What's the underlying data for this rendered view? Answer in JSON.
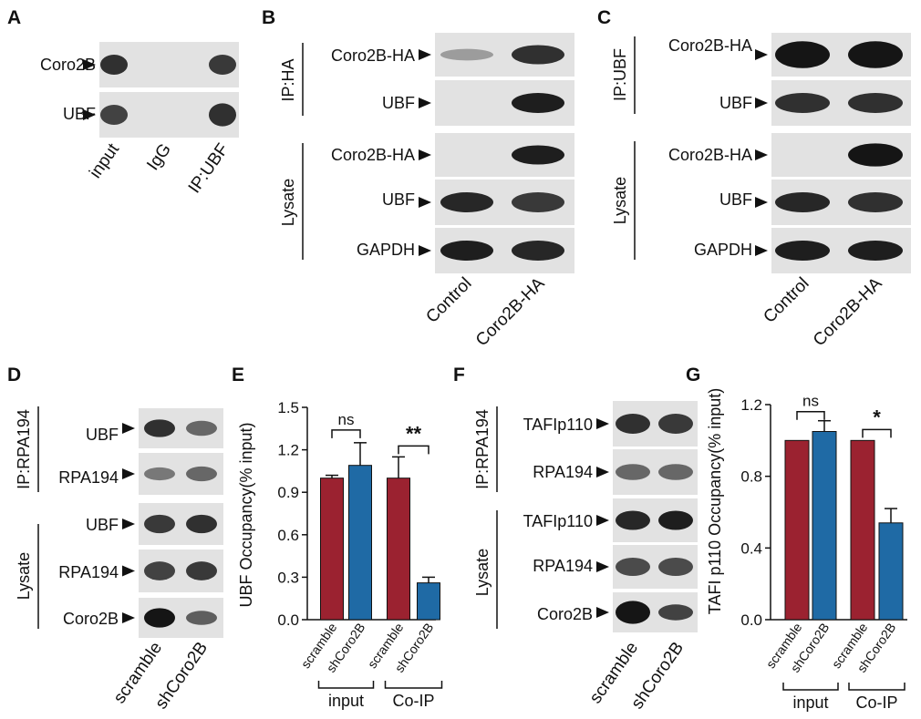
{
  "colors": {
    "scramble": "#9b2230",
    "shCoro2B": "#1f6aa5",
    "blot_bg": "#e2e2e2",
    "band": "#151515"
  },
  "panels": {
    "A": {
      "label": "A",
      "rows": [
        {
          "label": "Coro2B",
          "bands": [
            [
              0.85,
              1.0
            ],
            [
              0,
              0.2
            ],
            [
              0.8,
              1.0
            ]
          ]
        },
        {
          "label": "UBF",
          "bands": [
            [
              0.75,
              1.0
            ],
            [
              0,
              0.2
            ],
            [
              0.85,
              1.15
            ]
          ]
        }
      ],
      "lanes": [
        "input",
        "IgG",
        "IP:UBF"
      ]
    },
    "B": {
      "label": "B",
      "groups": [
        "IP:HA",
        "Lysate"
      ],
      "rows": [
        {
          "label": "Coro2B-HA",
          "bands": [
            [
              0.25,
              0.6
            ],
            [
              0.85,
              1.0
            ]
          ]
        },
        {
          "label": "UBF",
          "bands": [
            [
              0,
              0.3
            ],
            [
              0.95,
              1.0
            ]
          ]
        },
        {
          "label": "Coro2B-HA",
          "bands": [
            [
              0,
              0.3
            ],
            [
              0.95,
              1.0
            ]
          ]
        },
        {
          "label": "UBF",
          "bands": [
            [
              0.9,
              1.0
            ],
            [
              0.8,
              1.0
            ]
          ]
        },
        {
          "label": "GAPDH",
          "bands": [
            [
              0.95,
              1.0
            ],
            [
              0.9,
              1.0
            ]
          ]
        }
      ],
      "lanes": [
        "Control",
        "Coro2B-HA"
      ]
    },
    "C": {
      "label": "C",
      "groups": [
        "IP:UBF",
        "Lysate"
      ],
      "rows": [
        {
          "label": "Coro2B-HA",
          "bands": [
            [
              1.0,
              1.4
            ],
            [
              1.0,
              1.4
            ]
          ]
        },
        {
          "label": "UBF",
          "bands": [
            [
              0.85,
              1.0
            ],
            [
              0.85,
              1.0
            ]
          ]
        },
        {
          "label": "Coro2B-HA",
          "bands": [
            [
              0,
              0.3
            ],
            [
              1.0,
              1.2
            ]
          ]
        },
        {
          "label": "UBF",
          "bands": [
            [
              0.9,
              1.0
            ],
            [
              0.85,
              1.0
            ]
          ]
        },
        {
          "label": "GAPDH",
          "bands": [
            [
              0.95,
              1.0
            ],
            [
              0.95,
              1.0
            ]
          ]
        }
      ],
      "lanes": [
        "Control",
        "Coro2B-HA"
      ]
    },
    "D": {
      "label": "D",
      "groups": [
        "IP:RPA194",
        "Lysate"
      ],
      "rows": [
        {
          "label": "UBF",
          "bands": [
            [
              0.85,
              1.0
            ],
            [
              0.55,
              0.85
            ]
          ]
        },
        {
          "label": "RPA194",
          "bands": [
            [
              0.45,
              0.7
            ],
            [
              0.55,
              0.8
            ]
          ]
        },
        {
          "label": "UBF",
          "bands": [
            [
              0.8,
              1.0
            ],
            [
              0.85,
              1.0
            ]
          ]
        },
        {
          "label": "RPA194",
          "bands": [
            [
              0.75,
              1.0
            ],
            [
              0.8,
              1.0
            ]
          ]
        },
        {
          "label": "Coro2B",
          "bands": [
            [
              1.0,
              1.1
            ],
            [
              0.6,
              0.8
            ]
          ]
        }
      ],
      "lanes": [
        "scramble",
        "shCoro2B"
      ]
    },
    "E": {
      "label": "E",
      "y_axis_label": "UBF Occupancy(% input)",
      "groups": [
        "input",
        "Co-IP"
      ],
      "significance": [
        "ns",
        "**"
      ]
    },
    "F": {
      "label": "F",
      "groups": [
        "IP:RPA194",
        "Lysate"
      ],
      "rows": [
        {
          "label": "TAFIp110",
          "bands": [
            [
              0.85,
              1.0
            ],
            [
              0.8,
              1.0
            ]
          ]
        },
        {
          "label": "RPA194",
          "bands": [
            [
              0.55,
              0.8
            ],
            [
              0.55,
              0.8
            ]
          ]
        },
        {
          "label": "TAFIp110",
          "bands": [
            [
              0.9,
              1.0
            ],
            [
              0.95,
              1.0
            ]
          ]
        },
        {
          "label": "RPA194",
          "bands": [
            [
              0.7,
              0.95
            ],
            [
              0.7,
              0.95
            ]
          ]
        },
        {
          "label": "Coro2B",
          "bands": [
            [
              1.0,
              1.3
            ],
            [
              0.75,
              0.9
            ]
          ]
        }
      ],
      "lanes": [
        "scramble",
        "shCoro2B"
      ]
    },
    "G": {
      "label": "G",
      "y_axis_label": "TAFI p110 Occupancy(% input)",
      "groups": [
        "input",
        "Co-IP"
      ],
      "significance": [
        "ns",
        "*"
      ]
    }
  },
  "chart_data": [
    {
      "type": "bar",
      "panel": "E",
      "ylabel": "UBF Occupancy(% input)",
      "categories": [
        "scramble",
        "shCoro2B",
        "scramble",
        "shCoro2B"
      ],
      "groups": [
        "input",
        "Co-IP"
      ],
      "values": [
        1.0,
        1.09,
        1.0,
        0.26
      ],
      "errors": [
        0.02,
        0.16,
        0.15,
        0.04
      ],
      "ylim": [
        0,
        1.5
      ],
      "yticks": [
        "0.0",
        "0.3",
        "0.6",
        "0.9",
        "1.2",
        "1.5"
      ],
      "significance": [
        "ns",
        "**"
      ]
    },
    {
      "type": "bar",
      "panel": "G",
      "ylabel": "TAFI p110 Occupancy(% input)",
      "categories": [
        "scramble",
        "shCoro2B",
        "scramble",
        "shCoro2B"
      ],
      "groups": [
        "input",
        "Co-IP"
      ],
      "values": [
        1.0,
        1.05,
        1.0,
        0.54
      ],
      "errors": [
        0.0,
        0.06,
        0.0,
        0.08
      ],
      "ylim": [
        0,
        1.2
      ],
      "yticks": [
        "0.0",
        "0.4",
        "0.8",
        "1.2"
      ],
      "significance": [
        "ns",
        "*"
      ]
    }
  ]
}
